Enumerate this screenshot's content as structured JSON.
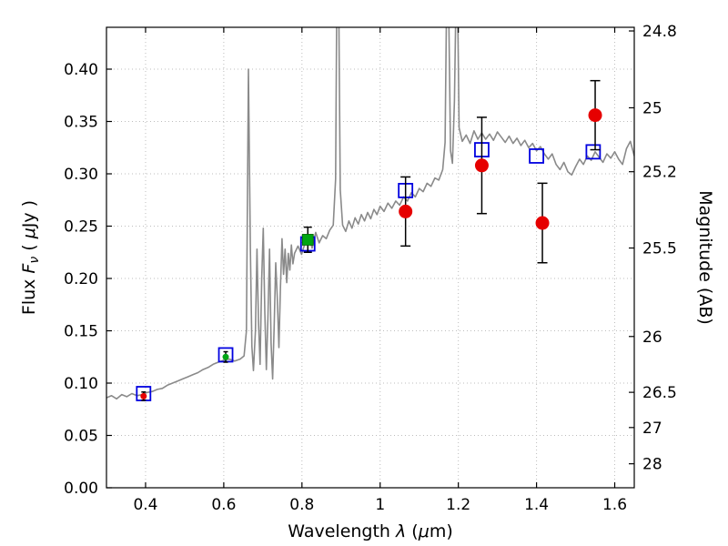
{
  "figure": {
    "background": "#ffffff"
  },
  "chart_data": {
    "type": "line",
    "description": "Galaxy SED: gray observed/model spectrum with photometric points (red circles, green square) and model photometry (blue open squares); dual flux/magnitude axes",
    "axes": {
      "xlabel_parts": [
        {
          "t": "Wavelength  ",
          "s": ""
        },
        {
          "t": "λ",
          "s": "i"
        },
        {
          "t": " (",
          "s": ""
        },
        {
          "t": "μ",
          "s": "i"
        },
        {
          "t": "m)",
          "s": ""
        }
      ],
      "ylabel_left_parts": [
        {
          "t": "Flux  ",
          "s": ""
        },
        {
          "t": "F",
          "s": "i"
        },
        {
          "t": "ν",
          "s": "i-sub"
        },
        {
          "t": "  ( ",
          "s": ""
        },
        {
          "t": "μ",
          "s": "i"
        },
        {
          "t": "Jy )",
          "s": ""
        }
      ],
      "ylabel_right": "Magnitude (AB)",
      "xlim": [
        0.3,
        1.65
      ],
      "ylim": [
        0.0,
        0.44
      ],
      "xticks": [
        {
          "v": 0.4,
          "label": "0.4"
        },
        {
          "v": 0.6,
          "label": "0.6"
        },
        {
          "v": 0.8,
          "label": "0.8"
        },
        {
          "v": 1.0,
          "label": "1"
        },
        {
          "v": 1.2,
          "label": "1.2"
        },
        {
          "v": 1.4,
          "label": "1.4"
        },
        {
          "v": 1.6,
          "label": "1.6"
        }
      ],
      "yticks_left": [
        {
          "v": 0.0,
          "label": "0.00"
        },
        {
          "v": 0.05,
          "label": "0.05"
        },
        {
          "v": 0.1,
          "label": "0.10"
        },
        {
          "v": 0.15,
          "label": "0.15"
        },
        {
          "v": 0.2,
          "label": "0.20"
        },
        {
          "v": 0.25,
          "label": "0.25"
        },
        {
          "v": 0.3,
          "label": "0.30"
        },
        {
          "v": 0.35,
          "label": "0.35"
        },
        {
          "v": 0.4,
          "label": "0.40"
        }
      ],
      "yticks_right": [
        {
          "mag": 24.8,
          "label": "24.8"
        },
        {
          "mag": 25.0,
          "label": "25"
        },
        {
          "mag": 25.2,
          "label": "25.2"
        },
        {
          "mag": 25.5,
          "label": "25.5"
        },
        {
          "mag": 26.0,
          "label": "26"
        },
        {
          "mag": 26.5,
          "label": "26.5"
        },
        {
          "mag": 27.0,
          "label": "27"
        },
        {
          "mag": 28.0,
          "label": "28"
        }
      ],
      "mag_zeropoint": 23.9,
      "grid": {
        "show": true,
        "style": "dotted",
        "color": "#bdbdbd"
      },
      "frame_color": "#000000",
      "tick_color": "#000000"
    },
    "series": [
      {
        "name": "spectrum",
        "kind": "line",
        "color": "#8a8a8a",
        "linewidth": 1.6,
        "points": [
          [
            0.3,
            0.086
          ],
          [
            0.313,
            0.088
          ],
          [
            0.326,
            0.085
          ],
          [
            0.339,
            0.089
          ],
          [
            0.352,
            0.087
          ],
          [
            0.365,
            0.09
          ],
          [
            0.378,
            0.088
          ],
          [
            0.391,
            0.089
          ],
          [
            0.404,
            0.091
          ],
          [
            0.417,
            0.092
          ],
          [
            0.43,
            0.094
          ],
          [
            0.443,
            0.095
          ],
          [
            0.456,
            0.098
          ],
          [
            0.469,
            0.1
          ],
          [
            0.482,
            0.102
          ],
          [
            0.495,
            0.104
          ],
          [
            0.508,
            0.106
          ],
          [
            0.521,
            0.108
          ],
          [
            0.534,
            0.11
          ],
          [
            0.547,
            0.113
          ],
          [
            0.56,
            0.115
          ],
          [
            0.573,
            0.118
          ],
          [
            0.586,
            0.12
          ],
          [
            0.6,
            0.122
          ],
          [
            0.614,
            0.123
          ],
          [
            0.628,
            0.121
          ],
          [
            0.642,
            0.123
          ],
          [
            0.652,
            0.126
          ],
          [
            0.658,
            0.15
          ],
          [
            0.663,
            0.4
          ],
          [
            0.668,
            0.23
          ],
          [
            0.672,
            0.135
          ],
          [
            0.676,
            0.112
          ],
          [
            0.681,
            0.15
          ],
          [
            0.685,
            0.228
          ],
          [
            0.689,
            0.158
          ],
          [
            0.693,
            0.118
          ],
          [
            0.697,
            0.2
          ],
          [
            0.701,
            0.248
          ],
          [
            0.705,
            0.168
          ],
          [
            0.709,
            0.113
          ],
          [
            0.713,
            0.162
          ],
          [
            0.717,
            0.228
          ],
          [
            0.721,
            0.138
          ],
          [
            0.725,
            0.104
          ],
          [
            0.729,
            0.155
          ],
          [
            0.733,
            0.215
          ],
          [
            0.737,
            0.182
          ],
          [
            0.741,
            0.134
          ],
          [
            0.745,
            0.192
          ],
          [
            0.749,
            0.238
          ],
          [
            0.753,
            0.204
          ],
          [
            0.757,
            0.228
          ],
          [
            0.761,
            0.196
          ],
          [
            0.765,
            0.224
          ],
          [
            0.769,
            0.208
          ],
          [
            0.773,
            0.232
          ],
          [
            0.777,
            0.214
          ],
          [
            0.781,
            0.224
          ],
          [
            0.79,
            0.231
          ],
          [
            0.799,
            0.223
          ],
          [
            0.808,
            0.234
          ],
          [
            0.817,
            0.241
          ],
          [
            0.826,
            0.229
          ],
          [
            0.835,
            0.244
          ],
          [
            0.844,
            0.234
          ],
          [
            0.853,
            0.241
          ],
          [
            0.862,
            0.238
          ],
          [
            0.871,
            0.246
          ],
          [
            0.88,
            0.251
          ],
          [
            0.886,
            0.295
          ],
          [
            0.889,
            0.47
          ],
          [
            0.894,
            0.47
          ],
          [
            0.898,
            0.285
          ],
          [
            0.904,
            0.251
          ],
          [
            0.912,
            0.245
          ],
          [
            0.92,
            0.255
          ],
          [
            0.928,
            0.248
          ],
          [
            0.936,
            0.258
          ],
          [
            0.944,
            0.252
          ],
          [
            0.952,
            0.261
          ],
          [
            0.96,
            0.255
          ],
          [
            0.968,
            0.263
          ],
          [
            0.976,
            0.257
          ],
          [
            0.984,
            0.266
          ],
          [
            0.992,
            0.261
          ],
          [
            1.0,
            0.269
          ],
          [
            1.01,
            0.264
          ],
          [
            1.02,
            0.272
          ],
          [
            1.03,
            0.267
          ],
          [
            1.04,
            0.274
          ],
          [
            1.05,
            0.27
          ],
          [
            1.06,
            0.278
          ],
          [
            1.07,
            0.274
          ],
          [
            1.08,
            0.282
          ],
          [
            1.09,
            0.278
          ],
          [
            1.1,
            0.286
          ],
          [
            1.11,
            0.283
          ],
          [
            1.12,
            0.291
          ],
          [
            1.13,
            0.288
          ],
          [
            1.14,
            0.296
          ],
          [
            1.15,
            0.294
          ],
          [
            1.16,
            0.304
          ],
          [
            1.166,
            0.33
          ],
          [
            1.17,
            0.47
          ],
          [
            1.175,
            0.47
          ],
          [
            1.18,
            0.322
          ],
          [
            1.185,
            0.31
          ],
          [
            1.19,
            0.37
          ],
          [
            1.194,
            0.47
          ],
          [
            1.198,
            0.47
          ],
          [
            1.202,
            0.344
          ],
          [
            1.21,
            0.331
          ],
          [
            1.22,
            0.337
          ],
          [
            1.23,
            0.329
          ],
          [
            1.24,
            0.341
          ],
          [
            1.25,
            0.333
          ],
          [
            1.26,
            0.339
          ],
          [
            1.27,
            0.333
          ],
          [
            1.28,
            0.338
          ],
          [
            1.29,
            0.332
          ],
          [
            1.3,
            0.34
          ],
          [
            1.31,
            0.335
          ],
          [
            1.32,
            0.33
          ],
          [
            1.33,
            0.336
          ],
          [
            1.34,
            0.329
          ],
          [
            1.35,
            0.334
          ],
          [
            1.36,
            0.327
          ],
          [
            1.37,
            0.332
          ],
          [
            1.38,
            0.325
          ],
          [
            1.39,
            0.329
          ],
          [
            1.4,
            0.322
          ],
          [
            1.41,
            0.326
          ],
          [
            1.42,
            0.319
          ],
          [
            1.43,
            0.314
          ],
          [
            1.44,
            0.319
          ],
          [
            1.45,
            0.309
          ],
          [
            1.46,
            0.304
          ],
          [
            1.47,
            0.311
          ],
          [
            1.48,
            0.302
          ],
          [
            1.49,
            0.299
          ],
          [
            1.5,
            0.307
          ],
          [
            1.51,
            0.314
          ],
          [
            1.52,
            0.309
          ],
          [
            1.53,
            0.317
          ],
          [
            1.54,
            0.313
          ],
          [
            1.55,
            0.321
          ],
          [
            1.56,
            0.316
          ],
          [
            1.57,
            0.311
          ],
          [
            1.58,
            0.319
          ],
          [
            1.59,
            0.315
          ],
          [
            1.6,
            0.321
          ],
          [
            1.61,
            0.314
          ],
          [
            1.62,
            0.309
          ],
          [
            1.63,
            0.324
          ],
          [
            1.64,
            0.331
          ],
          [
            1.65,
            0.317
          ]
        ]
      },
      {
        "name": "model-photometry",
        "kind": "scatter",
        "marker": "open-square",
        "color": "#0000e0",
        "markersize": 15,
        "points": [
          [
            0.395,
            0.09
          ],
          [
            0.605,
            0.127
          ],
          [
            0.815,
            0.233
          ],
          [
            1.065,
            0.284
          ],
          [
            1.26,
            0.323
          ],
          [
            1.4,
            0.317
          ],
          [
            1.545,
            0.321
          ]
        ]
      },
      {
        "name": "observed-ground-green",
        "kind": "scatter",
        "marker": "filled-square",
        "color": "#00a513",
        "markersize": 12,
        "capsize": 9,
        "errcolor": "#000000",
        "points": [
          [
            0.815,
            0.237
          ]
        ],
        "yerr": [
          0.012
        ]
      },
      {
        "name": "observed-optical-small-red",
        "kind": "scatter",
        "marker": "filled-circle",
        "color": "#e60000",
        "markersize": 6,
        "capsize": 5,
        "errcolor": "#000000",
        "points": [
          [
            0.395,
            0.0875
          ]
        ],
        "yerr": [
          0.004
        ]
      },
      {
        "name": "observed-optical-small-green",
        "kind": "scatter",
        "marker": "filled-circle",
        "color": "#00a513",
        "markersize": 6,
        "capsize": 5,
        "errcolor": "#000000",
        "points": [
          [
            0.605,
            0.125
          ]
        ],
        "yerr": [
          0.005
        ]
      },
      {
        "name": "observed-ir-red",
        "kind": "scatter",
        "marker": "filled-circle",
        "color": "#e60000",
        "markersize": 14,
        "capsize": 11,
        "errcolor": "#000000",
        "points": [
          [
            1.065,
            0.264
          ],
          [
            1.26,
            0.308
          ],
          [
            1.415,
            0.253
          ],
          [
            1.55,
            0.356
          ]
        ],
        "yerr": [
          0.033,
          0.046,
          0.038,
          0.033
        ]
      }
    ]
  }
}
